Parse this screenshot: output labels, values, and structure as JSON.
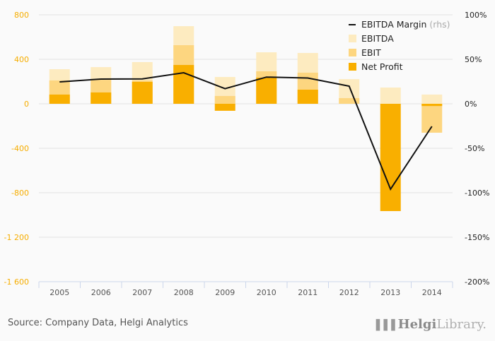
{
  "chart_data": {
    "type": "bar",
    "stacking": "overlay",
    "categories": [
      "2005",
      "2006",
      "2007",
      "2008",
      "2009",
      "2010",
      "2011",
      "2012",
      "2013",
      "2014"
    ],
    "series": [
      {
        "name": "EBITDA",
        "color": "#fdebc0",
        "values": [
          311,
          330,
          375,
          698,
          241,
          463,
          457,
          222,
          146,
          83
        ]
      },
      {
        "name": "EBIT",
        "color": "#fdd680",
        "values": [
          210,
          215,
          210,
          527,
          70,
          292,
          280,
          51,
          -5,
          -260
        ]
      },
      {
        "name": "Net Profit",
        "color": "#f9af00",
        "values": [
          83,
          102,
          197,
          349,
          -63,
          235,
          127,
          0,
          -965,
          -20
        ]
      },
      {
        "name": "EBITDA Margin",
        "type": "line",
        "axis": "right",
        "color": "#111111",
        "values": [
          24.6,
          27.8,
          28.0,
          34.9,
          17.0,
          30.0,
          29.0,
          19.8,
          -96.0,
          -25.4
        ]
      }
    ],
    "left_axis": {
      "ylim": [
        -1600,
        800
      ],
      "ticks": [
        800,
        400,
        0,
        -400,
        -800,
        -1200,
        -1600
      ],
      "tick_labels": [
        "800",
        "400",
        "0",
        "-400",
        "-800",
        "-1 200",
        "-1 600"
      ]
    },
    "right_axis": {
      "ylim": [
        -200,
        100
      ],
      "ticks": [
        100,
        50,
        0,
        -50,
        -100,
        -150,
        -200
      ],
      "tick_labels": [
        "100%",
        "50%",
        "0%",
        "-50%",
        "-100%",
        "-150%",
        "-200%"
      ]
    },
    "legend": {
      "position": "top-right",
      "items": [
        {
          "label": "EBITDA Margin",
          "suffix": "(rhs)",
          "kind": "line"
        },
        {
          "label": "EBITDA",
          "kind": "box"
        },
        {
          "label": "EBIT",
          "kind": "box"
        },
        {
          "label": "Net Profit",
          "kind": "box"
        }
      ]
    },
    "grid": true,
    "title": "",
    "xlabel": "",
    "ylabel": ""
  },
  "footer": {
    "source": "Source: Company Data, Helgi Analytics",
    "logo_bold": "Helgi",
    "logo_light": "Library.",
    "logo_icon": "▐▐▐"
  }
}
